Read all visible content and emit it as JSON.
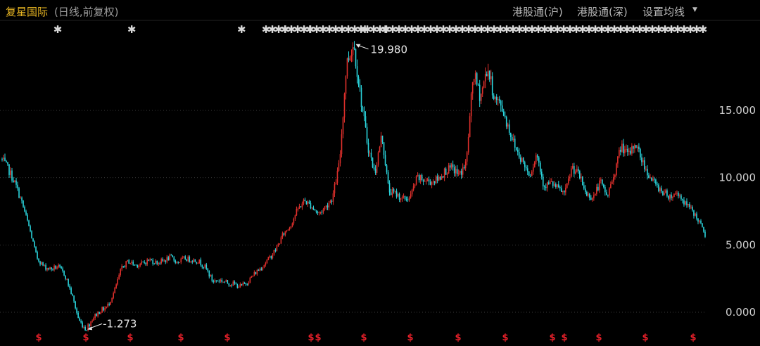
{
  "header": {
    "stock_name": "复星国际",
    "sub_label": "(日线,前复权)",
    "hk_connect_sh": "港股通(沪)",
    "hk_connect_sz": "港股通(深)",
    "ma_settings": "设置均线",
    "caret_icon": "caret-down-icon"
  },
  "colors": {
    "background": "#000000",
    "up_candle": "#e0302c",
    "down_candle": "#2ad4dc",
    "grid": "#3a3a3a",
    "title": "#e6b422",
    "dividend_marker": "#e8202a"
  },
  "chart_data": {
    "type": "candlestick",
    "title": "",
    "xlabel": "",
    "ylabel": "",
    "ylim": [
      -1.6,
      20.3
    ],
    "y_ticks": [
      0.0,
      5.0,
      10.0,
      15.0
    ],
    "y_tick_labels": [
      "0.000",
      "5.000",
      "10.000",
      "15.000"
    ],
    "grid": true,
    "price_path": {
      "x": [
        0,
        1,
        2,
        3,
        4,
        5,
        6,
        7,
        8,
        9,
        10,
        11,
        12,
        13,
        14,
        15,
        16,
        17,
        18,
        19,
        20,
        21,
        22,
        23,
        24,
        25,
        26,
        27,
        28,
        29,
        30,
        31,
        32,
        33,
        34,
        35,
        36,
        37,
        38,
        39,
        40,
        41,
        42,
        43,
        44,
        45,
        46,
        47,
        48,
        49,
        50,
        51,
        52,
        53,
        54,
        55,
        56,
        57,
        58,
        59,
        60,
        61,
        62,
        63,
        64,
        65,
        66,
        67,
        68,
        69,
        70,
        71,
        72,
        73,
        74,
        75,
        76,
        77,
        78,
        79,
        80,
        81,
        82,
        83,
        84,
        85,
        86,
        87,
        88,
        89,
        90,
        91,
        92,
        93,
        94,
        95,
        96,
        97,
        98,
        99,
        100
      ],
      "close": [
        11.4,
        10.6,
        9.5,
        8.0,
        6.2,
        4.1,
        3.4,
        3.2,
        3.4,
        2.8,
        1.3,
        -0.6,
        -1.27,
        -0.4,
        0.1,
        0.4,
        1.5,
        3.2,
        3.8,
        3.5,
        3.6,
        3.9,
        3.7,
        3.8,
        4.1,
        3.7,
        4.0,
        3.9,
        3.8,
        3.3,
        2.3,
        2.4,
        2.2,
        2.1,
        1.9,
        2.3,
        2.9,
        3.4,
        4.0,
        4.7,
        5.8,
        6.4,
        7.6,
        8.3,
        7.9,
        7.3,
        7.8,
        8.5,
        11.1,
        18.5,
        19.98,
        16.0,
        12.4,
        10.3,
        13.2,
        9.0,
        8.8,
        8.4,
        8.5,
        10.0,
        9.8,
        9.7,
        9.9,
        10.5,
        10.7,
        10.2,
        11.1,
        17.8,
        16.0,
        18.2,
        15.9,
        15.3,
        13.7,
        12.2,
        11.2,
        10.2,
        11.8,
        9.4,
        9.6,
        9.2,
        8.8,
        10.8,
        10.2,
        8.8,
        8.5,
        9.7,
        8.6,
        10.3,
        12.4,
        11.6,
        12.6,
        11.2,
        10.1,
        9.4,
        8.9,
        8.6,
        8.9,
        8.1,
        7.6,
        6.8,
        5.6
      ]
    },
    "annotations": [
      {
        "label": "19.980",
        "x": 50,
        "y": 19.98
      },
      {
        "label": "-1.273",
        "x": 12,
        "y": -1.273
      }
    ],
    "top_markers": {
      "symbol": "✱",
      "positions": [
        8.0,
        18.5,
        34.1,
        40.3,
        43.8,
        51.6,
        54.5,
        56.2,
        61.4,
        62.8,
        64.5,
        66.2,
        67.9,
        69.6,
        71.3,
        73.0,
        74.7,
        76.4,
        78.1,
        79.8,
        81.5,
        83.2,
        84.9,
        86.6,
        88.3,
        90.0,
        91.7,
        93.4,
        95.1,
        96.8,
        98.5,
        100
      ]
    },
    "dividend_markers": {
      "symbol": "$",
      "positions": [
        9.2,
        20.3,
        37.4,
        41.3,
        53.1,
        73.4,
        74.4,
        85.2,
        96.8,
        107.0,
        129.3,
        142.1,
        148.4,
        156.4,
        165.2
      ]
    }
  }
}
